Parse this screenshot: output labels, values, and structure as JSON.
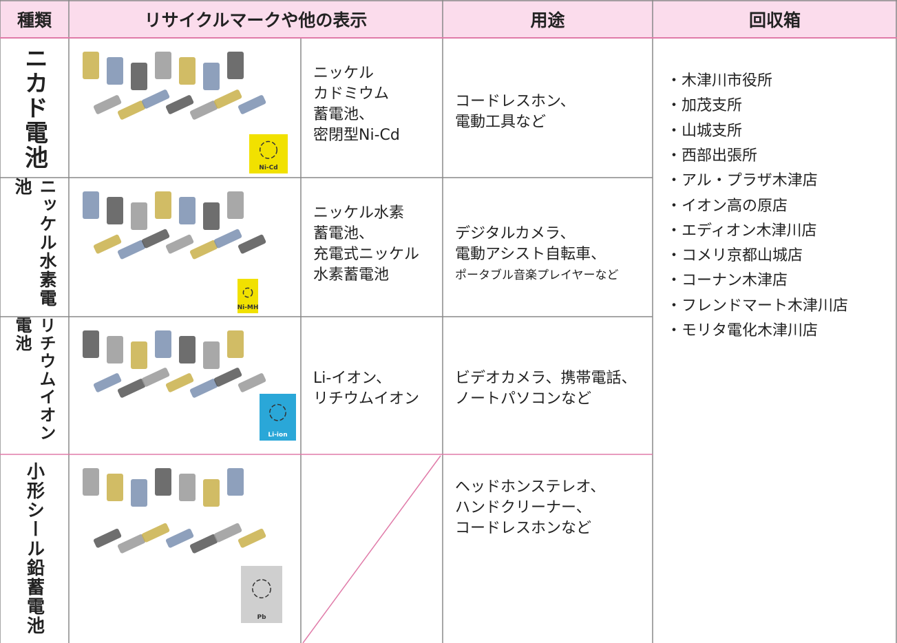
{
  "header": {
    "type": "種類",
    "mark": "リサイクルマークや他の表示",
    "use": "用途",
    "boxes": "回収箱"
  },
  "rows": [
    {
      "type": "ニカド電池",
      "logo": "Ni-Cd",
      "mark": [
        "ニッケル",
        "カドミウム",
        "蓄電池、",
        "密閉型Ni-Cd"
      ],
      "use": [
        "コードレスホン、",
        "電動工具など"
      ]
    },
    {
      "type": "ニッケル水素電池",
      "logo": "Ni-MH",
      "mark": [
        "ニッケル水素",
        "蓄電池、",
        "充電式ニッケル",
        "水素蓄電池"
      ],
      "use": [
        "デジタルカメラ、",
        "電動アシスト自転車、",
        "ポータブル音楽プレイヤーなど"
      ]
    },
    {
      "type": "リチウムイオン電池",
      "logo": "Li-ion",
      "mark": [
        "Li-イオン、",
        "リチウムイオン"
      ],
      "use": [
        "ビデオカメラ、携帯電話、",
        "ノートパソコンなど"
      ]
    },
    {
      "type": "小形シール鉛蓄電池",
      "logo": "Pb",
      "mark": [],
      "use": [
        "ヘッドホンステレオ、",
        "ハンドクリーナー、",
        "コードレスホンなど"
      ]
    }
  ],
  "boxes": [
    "・木津川市役所",
    "・加茂支所",
    "・山城支所",
    "・西部出張所",
    "・アル・プラザ木津店",
    "・イオン高の原店",
    "・エディオン木津川店",
    "・コメリ京都山城店",
    "・コーナン木津店",
    "・フレンドマート木津川店",
    "・モリタ電化木津川店"
  ]
}
